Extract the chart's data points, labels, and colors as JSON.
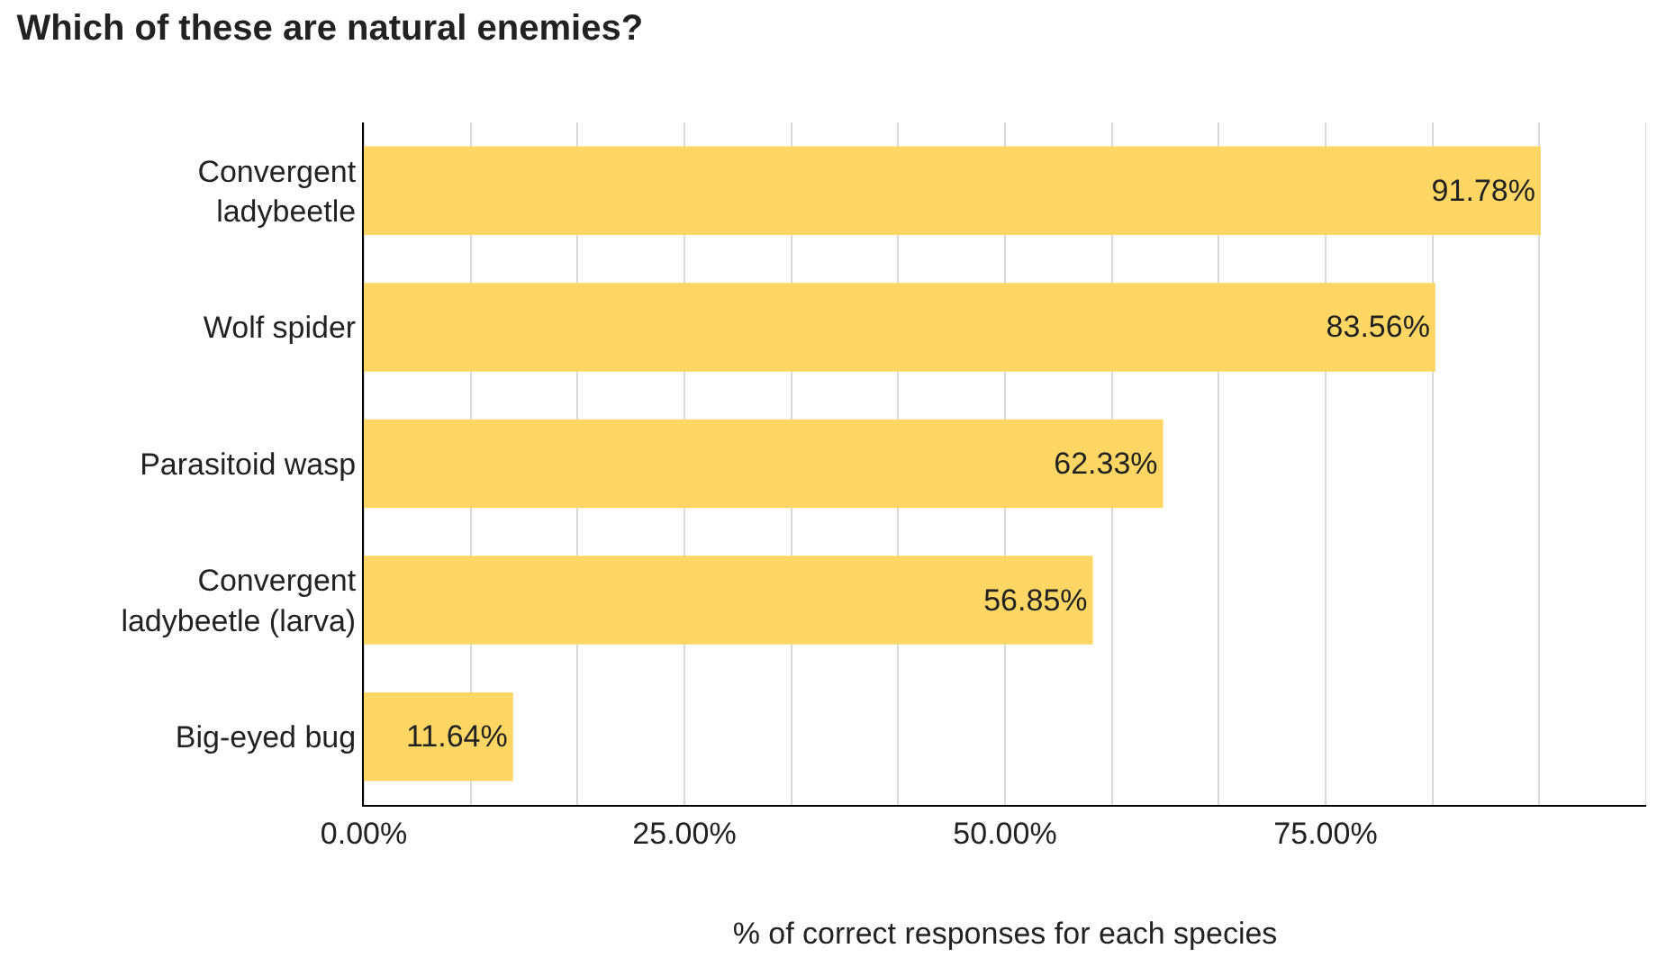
{
  "chart_data": {
    "type": "bar",
    "orientation": "horizontal",
    "title": "Which of these are natural enemies?",
    "xlabel": "% of correct responses for each species",
    "categories": [
      "Convergent ladybeetle",
      "Wolf spider",
      "Parasitoid wasp",
      "Convergent ladybeetle (larva)",
      "Big-eyed bug"
    ],
    "values": [
      91.78,
      83.56,
      62.33,
      56.85,
      11.64
    ],
    "value_labels": [
      "91.78%",
      "83.56%",
      "62.33%",
      "56.85%",
      "11.64%"
    ],
    "color": "#fdd663",
    "xlim": [
      0,
      100
    ],
    "xticks": [
      {
        "value": 0,
        "label": "0.00%"
      },
      {
        "value": 8.333,
        "label": null
      },
      {
        "value": 16.667,
        "label": null
      },
      {
        "value": 25,
        "label": "25.00%"
      },
      {
        "value": 33.333,
        "label": null
      },
      {
        "value": 41.667,
        "label": null
      },
      {
        "value": 50,
        "label": "50.00%"
      },
      {
        "value": 58.333,
        "label": null
      },
      {
        "value": 66.667,
        "label": null
      },
      {
        "value": 75,
        "label": "75.00%"
      },
      {
        "value": 83.333,
        "label": null
      },
      {
        "value": 91.667,
        "label": null
      },
      {
        "value": 100,
        "label": null
      }
    ],
    "grid": "x"
  }
}
